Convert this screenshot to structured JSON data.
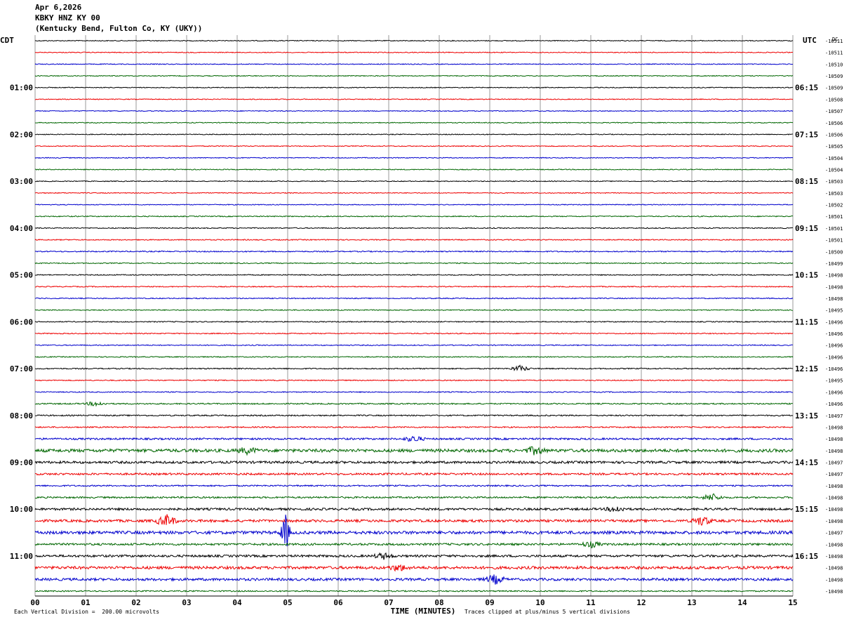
{
  "header": {
    "date": "Apr 6,2026",
    "station": "KBKY HNZ KY 00",
    "location": "(Kentucky Bend, Fulton Co, KY (UKY))"
  },
  "chart_data": {
    "type": "line",
    "title": "KBKY HNZ KY 00",
    "xlabel": "TIME (MINUTES)",
    "xlim": [
      0,
      15
    ],
    "x_ticks": [
      "00",
      "01",
      "02",
      "03",
      "04",
      "05",
      "06",
      "07",
      "08",
      "09",
      "10",
      "11",
      "12",
      "13",
      "14",
      "15"
    ],
    "left_axis_label": "CDT",
    "right_axis_label": "UTC",
    "dc_label": "DC",
    "left_hour_labels": [
      "01:00",
      "02:00",
      "03:00",
      "04:00",
      "05:00",
      "06:00",
      "07:00",
      "08:00",
      "09:00",
      "10:00",
      "11:00"
    ],
    "right_hour_labels": [
      "06:15",
      "07:15",
      "08:15",
      "09:15",
      "10:15",
      "11:15",
      "12:15",
      "13:15",
      "14:15",
      "15:15",
      "16:15"
    ],
    "rows_per_hour": 4,
    "minutes_per_row": 15,
    "trace_colors": [
      "#000000",
      "#ee0000",
      "#0000cc",
      "#006600"
    ],
    "dc_offsets": [
      "-10511",
      "-10511",
      "-10510",
      "-10509",
      "-10509",
      "-10508",
      "-10507",
      "-10506",
      "-10506",
      "-10505",
      "-10504",
      "-10504",
      "-10503",
      "-10503",
      "-10502",
      "-10501",
      "-10501",
      "-10501",
      "-10500",
      "-10499",
      "-10498",
      "-10498",
      "-10498",
      "-10495",
      "-10496",
      "-10496",
      "-10496",
      "-10496",
      "-10496",
      "-10495",
      "-10496",
      "-10496",
      "-10497",
      "-10498",
      "-10498",
      "-10498",
      "-10497",
      "-10497",
      "-10498",
      "-10498",
      "-10498",
      "-10498",
      "-10497",
      "-10498",
      "-10498",
      "-10498",
      "-10498",
      "-10498"
    ],
    "row_noise_levels": [
      0.6,
      0.6,
      0.6,
      0.6,
      0.6,
      0.6,
      0.6,
      0.6,
      0.6,
      0.6,
      0.6,
      0.6,
      0.6,
      0.6,
      0.6,
      0.7,
      0.7,
      0.7,
      0.8,
      0.7,
      0.7,
      0.7,
      0.7,
      0.7,
      0.7,
      0.7,
      0.7,
      0.7,
      0.8,
      0.7,
      0.7,
      0.9,
      0.9,
      0.9,
      1.3,
      2.2,
      1.7,
      1.4,
      1.0,
      1.2,
      1.6,
      1.8,
      2.2,
      1.5,
      1.6,
      2.0,
      1.8,
      0.9
    ],
    "events": [
      {
        "row": 28,
        "minute": 9.6,
        "amplitude": 4
      },
      {
        "row": 31,
        "minute": 1.2,
        "amplitude": 3
      },
      {
        "row": 34,
        "minute": 7.5,
        "amplitude": 4
      },
      {
        "row": 35,
        "minute": 4.2,
        "amplitude": 4
      },
      {
        "row": 35,
        "minute": 9.9,
        "amplitude": 5
      },
      {
        "row": 39,
        "minute": 13.4,
        "amplitude": 5
      },
      {
        "row": 40,
        "minute": 11.5,
        "amplitude": 4
      },
      {
        "row": 41,
        "minute": 2.6,
        "amplitude": 8
      },
      {
        "row": 41,
        "minute": 13.2,
        "amplitude": 6
      },
      {
        "row": 42,
        "minute": 4.95,
        "amplitude": 26
      },
      {
        "row": 43,
        "minute": 11.0,
        "amplitude": 4
      },
      {
        "row": 44,
        "minute": 6.9,
        "amplitude": 4
      },
      {
        "row": 45,
        "minute": 7.2,
        "amplitude": 4
      },
      {
        "row": 46,
        "minute": 9.1,
        "amplitude": 6
      }
    ]
  },
  "footer": {
    "left_note": "Each Vertical Division =  200.00 microvolts",
    "center_label": "TIME (MINUTES)",
    "right_note": "Traces clipped at plus/minus 5 vertical divisions"
  }
}
